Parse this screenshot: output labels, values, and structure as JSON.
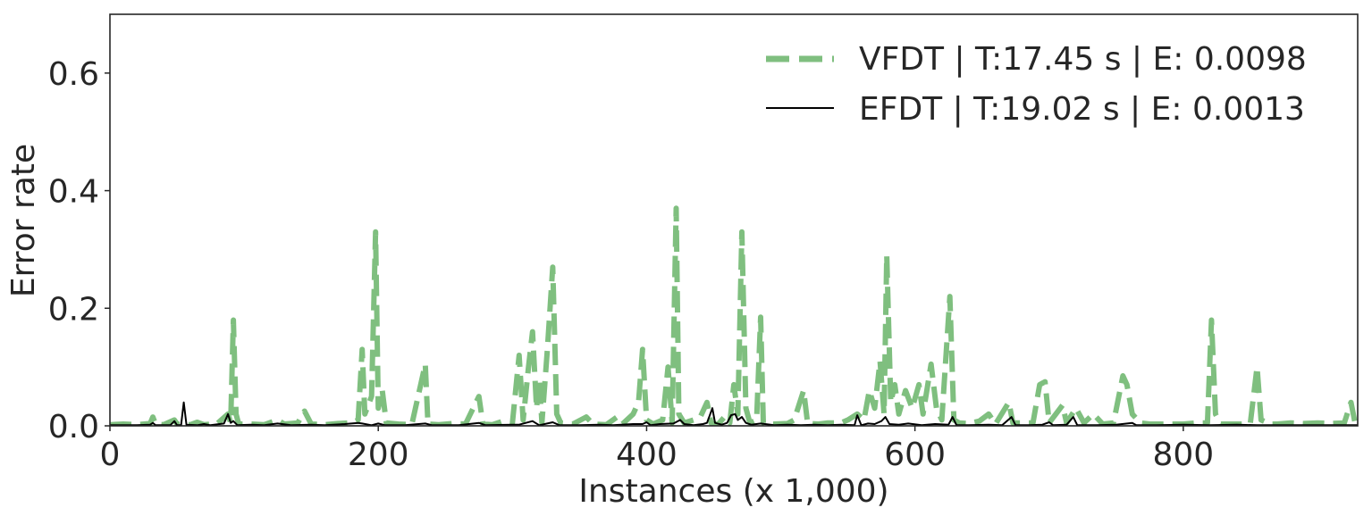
{
  "chart_data": {
    "type": "line",
    "xlabel": "Instances (x 1,000)",
    "ylabel": "Error rate",
    "xlim": [
      0,
      930
    ],
    "ylim": [
      0,
      0.7
    ],
    "xticks": [
      0,
      200,
      400,
      600,
      800
    ],
    "yticks": [
      0.0,
      0.2,
      0.4,
      0.6
    ],
    "xtick_labels": [
      "0",
      "200",
      "400",
      "600",
      "800"
    ],
    "ytick_labels": [
      "0.0",
      "0.2",
      "0.4",
      "0.6"
    ],
    "grid": false,
    "legend_position": "top-right",
    "series": [
      {
        "name": "VFDT | T:17.45 s | E: 0.0098",
        "color": "#7fbf7f",
        "style": "dashed",
        "points": [
          [
            0,
            0.002
          ],
          [
            10,
            0.003
          ],
          [
            20,
            0.002
          ],
          [
            30,
            0.004
          ],
          [
            32,
            0.015
          ],
          [
            34,
            0.003
          ],
          [
            40,
            0.002
          ],
          [
            48,
            0.01
          ],
          [
            50,
            0.003
          ],
          [
            60,
            0.002
          ],
          [
            65,
            0.006
          ],
          [
            70,
            0.002
          ],
          [
            80,
            0.004
          ],
          [
            88,
            0.02
          ],
          [
            90,
            0.005
          ],
          [
            92,
            0.18
          ],
          [
            94,
            0.02
          ],
          [
            96,
            0.003
          ],
          [
            105,
            0.003
          ],
          [
            115,
            0.002
          ],
          [
            125,
            0.01
          ],
          [
            130,
            0.003
          ],
          [
            140,
            0.005
          ],
          [
            145,
            0.025
          ],
          [
            150,
            0.003
          ],
          [
            160,
            0.002
          ],
          [
            170,
            0.004
          ],
          [
            180,
            0.005
          ],
          [
            185,
            0.01
          ],
          [
            188,
            0.13
          ],
          [
            190,
            0.02
          ],
          [
            195,
            0.05
          ],
          [
            198,
            0.33
          ],
          [
            200,
            0.03
          ],
          [
            203,
            0.06
          ],
          [
            206,
            0.005
          ],
          [
            215,
            0.003
          ],
          [
            225,
            0.002
          ],
          [
            235,
            0.105
          ],
          [
            237,
            0.003
          ],
          [
            245,
            0.002
          ],
          [
            255,
            0.004
          ],
          [
            265,
            0.003
          ],
          [
            275,
            0.05
          ],
          [
            278,
            0.003
          ],
          [
            285,
            0.002
          ],
          [
            293,
            0.008
          ],
          [
            300,
            0.005
          ],
          [
            305,
            0.12
          ],
          [
            308,
            0.01
          ],
          [
            312,
            0.1
          ],
          [
            315,
            0.16
          ],
          [
            318,
            0.03
          ],
          [
            320,
            0.08
          ],
          [
            322,
            0.005
          ],
          [
            326,
            0.13
          ],
          [
            330,
            0.27
          ],
          [
            333,
            0.02
          ],
          [
            336,
            0.005
          ],
          [
            345,
            0.003
          ],
          [
            355,
            0.015
          ],
          [
            360,
            0.003
          ],
          [
            370,
            0.002
          ],
          [
            378,
            0.015
          ],
          [
            382,
            0.003
          ],
          [
            390,
            0.02
          ],
          [
            394,
            0.04
          ],
          [
            397,
            0.13
          ],
          [
            400,
            0.01
          ],
          [
            405,
            0.003
          ],
          [
            412,
            0.01
          ],
          [
            416,
            0.1
          ],
          [
            419,
            0.005
          ],
          [
            422,
            0.37
          ],
          [
            424,
            0.02
          ],
          [
            428,
            0.005
          ],
          [
            435,
            0.01
          ],
          [
            440,
            0.015
          ],
          [
            445,
            0.04
          ],
          [
            448,
            0.005
          ],
          [
            453,
            0.002
          ],
          [
            458,
            0.015
          ],
          [
            462,
            0.005
          ],
          [
            465,
            0.07
          ],
          [
            468,
            0.02
          ],
          [
            471,
            0.33
          ],
          [
            474,
            0.03
          ],
          [
            477,
            0.005
          ],
          [
            482,
            0.01
          ],
          [
            485,
            0.185
          ],
          [
            487,
            0.005
          ],
          [
            495,
            0.003
          ],
          [
            505,
            0.004
          ],
          [
            510,
            0.01
          ],
          [
            517,
            0.06
          ],
          [
            520,
            0.004
          ],
          [
            528,
            0.003
          ],
          [
            535,
            0.005
          ],
          [
            545,
            0.005
          ],
          [
            550,
            0.01
          ],
          [
            557,
            0.02
          ],
          [
            562,
            0.01
          ],
          [
            566,
            0.06
          ],
          [
            570,
            0.03
          ],
          [
            574,
            0.11
          ],
          [
            577,
            0.02
          ],
          [
            579,
            0.29
          ],
          [
            582,
            0.04
          ],
          [
            585,
            0.07
          ],
          [
            588,
            0.02
          ],
          [
            593,
            0.06
          ],
          [
            598,
            0.03
          ],
          [
            603,
            0.07
          ],
          [
            606,
            0.02
          ],
          [
            612,
            0.105
          ],
          [
            616,
            0.03
          ],
          [
            620,
            0.01
          ],
          [
            626,
            0.22
          ],
          [
            629,
            0.01
          ],
          [
            633,
            0.005
          ],
          [
            640,
            0.004
          ],
          [
            648,
            0.008
          ],
          [
            655,
            0.02
          ],
          [
            660,
            0.003
          ],
          [
            670,
            0.04
          ],
          [
            673,
            0.005
          ],
          [
            680,
            0.005
          ],
          [
            688,
            0.005
          ],
          [
            693,
            0.07
          ],
          [
            697,
            0.075
          ],
          [
            700,
            0.005
          ],
          [
            705,
            0.02
          ],
          [
            710,
            0.035
          ],
          [
            713,
            0.005
          ],
          [
            720,
            0.03
          ],
          [
            726,
            0.005
          ],
          [
            733,
            0.02
          ],
          [
            740,
            0.003
          ],
          [
            748,
            0.005
          ],
          [
            755,
            0.085
          ],
          [
            758,
            0.07
          ],
          [
            762,
            0.02
          ],
          [
            768,
            0.005
          ],
          [
            775,
            0.003
          ],
          [
            785,
            0.003
          ],
          [
            793,
            0.003
          ],
          [
            800,
            0.003
          ],
          [
            810,
            0.005
          ],
          [
            818,
            0.005
          ],
          [
            821,
            0.18
          ],
          [
            824,
            0.02
          ],
          [
            828,
            0.003
          ],
          [
            835,
            0.003
          ],
          [
            845,
            0.003
          ],
          [
            850,
            0.005
          ],
          [
            855,
            0.1
          ],
          [
            858,
            0.01
          ],
          [
            865,
            0.003
          ],
          [
            870,
            0.003
          ],
          [
            880,
            0.005
          ],
          [
            890,
            0.004
          ],
          [
            900,
            0.005
          ],
          [
            910,
            0.004
          ],
          [
            920,
            0.005
          ],
          [
            925,
            0.04
          ],
          [
            928,
            0.005
          ],
          [
            930,
            0.003
          ]
        ]
      },
      {
        "name": "EFDT | T:19.02 s | E: 0.0013",
        "color": "#000000",
        "style": "solid",
        "points": [
          [
            0,
            0.001
          ],
          [
            20,
            0.001
          ],
          [
            30,
            0.002
          ],
          [
            32,
            0.005
          ],
          [
            34,
            0.001
          ],
          [
            45,
            0.001
          ],
          [
            48,
            0.008
          ],
          [
            50,
            0.001
          ],
          [
            53,
            0.001
          ],
          [
            55,
            0.04
          ],
          [
            57,
            0.002
          ],
          [
            65,
            0.001
          ],
          [
            70,
            0.003
          ],
          [
            75,
            0.001
          ],
          [
            85,
            0.004
          ],
          [
            88,
            0.02
          ],
          [
            90,
            0.005
          ],
          [
            92,
            0.008
          ],
          [
            95,
            0.001
          ],
          [
            105,
            0.002
          ],
          [
            115,
            0.001
          ],
          [
            125,
            0.004
          ],
          [
            135,
            0.001
          ],
          [
            150,
            0.002
          ],
          [
            160,
            0.001
          ],
          [
            175,
            0.003
          ],
          [
            185,
            0.005
          ],
          [
            188,
            0.004
          ],
          [
            195,
            0.001
          ],
          [
            200,
            0.004
          ],
          [
            205,
            0.001
          ],
          [
            220,
            0.001
          ],
          [
            235,
            0.004
          ],
          [
            240,
            0.001
          ],
          [
            260,
            0.001
          ],
          [
            275,
            0.005
          ],
          [
            280,
            0.001
          ],
          [
            300,
            0.002
          ],
          [
            305,
            0.002
          ],
          [
            315,
            0.008
          ],
          [
            320,
            0.001
          ],
          [
            330,
            0.006
          ],
          [
            335,
            0.001
          ],
          [
            350,
            0.001
          ],
          [
            365,
            0.002
          ],
          [
            375,
            0.001
          ],
          [
            390,
            0.003
          ],
          [
            397,
            0.003
          ],
          [
            400,
            0.006
          ],
          [
            403,
            0.001
          ],
          [
            410,
            0.003
          ],
          [
            420,
            0.004
          ],
          [
            425,
            0.01
          ],
          [
            428,
            0.003
          ],
          [
            435,
            0.001
          ],
          [
            442,
            0.003
          ],
          [
            445,
            0.005
          ],
          [
            449,
            0.03
          ],
          [
            451,
            0.005
          ],
          [
            456,
            0.002
          ],
          [
            460,
            0.005
          ],
          [
            463,
            0.018
          ],
          [
            466,
            0.02
          ],
          [
            468,
            0.01
          ],
          [
            471,
            0.015
          ],
          [
            474,
            0.005
          ],
          [
            478,
            0.002
          ],
          [
            485,
            0.004
          ],
          [
            495,
            0.001
          ],
          [
            505,
            0.002
          ],
          [
            515,
            0.001
          ],
          [
            525,
            0.002
          ],
          [
            535,
            0.001
          ],
          [
            545,
            0.002
          ],
          [
            555,
            0.001
          ],
          [
            557,
            0.018
          ],
          [
            560,
            0.001
          ],
          [
            565,
            0.004
          ],
          [
            570,
            0.003
          ],
          [
            575,
            0.008
          ],
          [
            578,
            0.015
          ],
          [
            581,
            0.003
          ],
          [
            588,
            0.002
          ],
          [
            595,
            0.004
          ],
          [
            605,
            0.001
          ],
          [
            615,
            0.003
          ],
          [
            625,
            0.002
          ],
          [
            628,
            0.015
          ],
          [
            631,
            0.001
          ],
          [
            640,
            0.001
          ],
          [
            655,
            0.002
          ],
          [
            665,
            0.001
          ],
          [
            672,
            0.015
          ],
          [
            675,
            0.001
          ],
          [
            685,
            0.001
          ],
          [
            695,
            0.002
          ],
          [
            700,
            0.006
          ],
          [
            703,
            0.001
          ],
          [
            713,
            0.002
          ],
          [
            718,
            0.015
          ],
          [
            721,
            0.001
          ],
          [
            735,
            0.001
          ],
          [
            750,
            0.002
          ],
          [
            762,
            0.005
          ],
          [
            765,
            0.001
          ],
          [
            780,
            0.001
          ],
          [
            800,
            0.002
          ],
          [
            820,
            0.001
          ],
          [
            840,
            0.002
          ],
          [
            855,
            0.001
          ],
          [
            870,
            0.001
          ],
          [
            890,
            0.001
          ],
          [
            910,
            0.001
          ],
          [
            930,
            0.001
          ]
        ]
      }
    ]
  }
}
